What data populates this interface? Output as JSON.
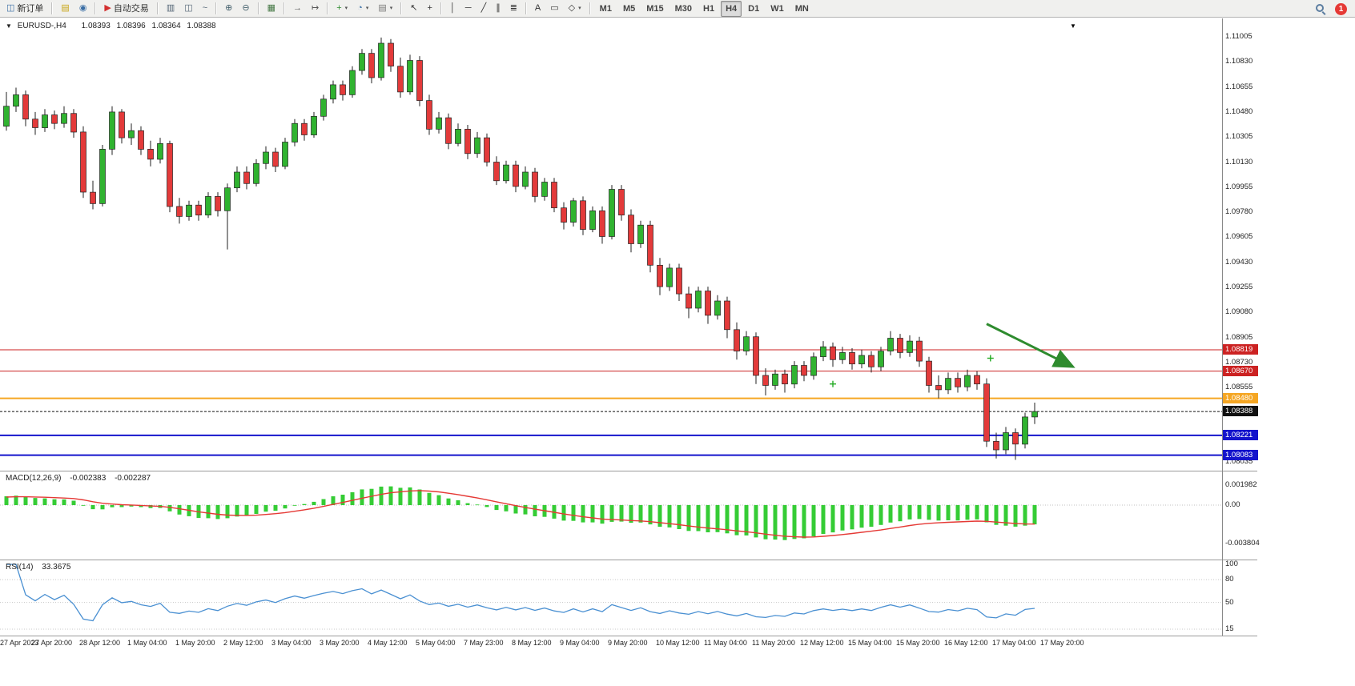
{
  "toolbar": {
    "notification_count": "1",
    "items": [
      {
        "name": "new-order",
        "label": "新订单",
        "glyph": "◫",
        "color": "#3a6ea5"
      },
      {
        "sep": true
      },
      {
        "name": "market-watch",
        "glyph": "▤",
        "color": "#c8a415"
      },
      {
        "name": "navigator",
        "glyph": "◉",
        "color": "#3a6ea5"
      },
      {
        "sep": true
      },
      {
        "name": "auto-trading",
        "label": "自动交易",
        "glyph": "▶",
        "color": "#d32f2f"
      },
      {
        "sep": true
      },
      {
        "name": "bar-chart-mode",
        "glyph": "▥",
        "color": "#556677"
      },
      {
        "name": "candle-chart-mode",
        "glyph": "◫",
        "color": "#556677"
      },
      {
        "name": "line-chart-mode",
        "glyph": "~",
        "color": "#556677"
      },
      {
        "sep": true
      },
      {
        "name": "zoom-in",
        "glyph": "⊕",
        "color": "#44606c"
      },
      {
        "name": "zoom-out",
        "glyph": "⊖",
        "color": "#44606c"
      },
      {
        "sep": true
      },
      {
        "name": "tile-windows",
        "glyph": "▦",
        "color": "#447744"
      },
      {
        "sep": true
      },
      {
        "name": "auto-scroll",
        "glyph": "→",
        "color": "#555555"
      },
      {
        "name": "chart-shift",
        "glyph": "↦",
        "color": "#555555"
      },
      {
        "sep": true
      },
      {
        "name": "indicators",
        "glyph": "+",
        "color": "#2e8b2e",
        "caret": true
      },
      {
        "name": "periods",
        "glyph": "◔",
        "color": "#3a6ea5",
        "caret": true
      },
      {
        "name": "templates",
        "glyph": "▤",
        "color": "#777777",
        "caret": true
      },
      {
        "sep": true
      },
      {
        "name": "cursor",
        "glyph": "↖",
        "color": "#333333"
      },
      {
        "name": "crosshair",
        "glyph": "+",
        "color": "#333333"
      },
      {
        "sep": true
      },
      {
        "name": "vertical-line",
        "glyph": "│",
        "color": "#333333"
      },
      {
        "name": "horizontal-line",
        "glyph": "─",
        "color": "#333333"
      },
      {
        "name": "trendline",
        "glyph": "╱",
        "color": "#333333"
      },
      {
        "name": "equidistant-channel",
        "glyph": "∥",
        "color": "#333333"
      },
      {
        "name": "fibonacci",
        "glyph": "≣",
        "color": "#333333"
      },
      {
        "sep": true
      },
      {
        "name": "text",
        "glyph": "A",
        "color": "#333333"
      },
      {
        "name": "text-label",
        "glyph": "▭",
        "color": "#333333"
      },
      {
        "name": "shapes",
        "glyph": "◇",
        "color": "#333333",
        "caret": true
      },
      {
        "sep": true
      },
      {
        "name": "timeframe-m1",
        "label": "M1",
        "tf": true
      },
      {
        "name": "timeframe-m5",
        "label": "M5",
        "tf": true
      },
      {
        "name": "timeframe-m15",
        "label": "M15",
        "tf": true
      },
      {
        "name": "timeframe-m30",
        "label": "M30",
        "tf": true
      },
      {
        "name": "timeframe-h1",
        "label": "H1",
        "tf": true
      },
      {
        "name": "timeframe-h4",
        "label": "H4",
        "tf": true,
        "active": true
      },
      {
        "name": "timeframe-d1",
        "label": "D1",
        "tf": true
      },
      {
        "name": "timeframe-w1",
        "label": "W1",
        "tf": true
      },
      {
        "name": "timeframe-mn",
        "label": "MN",
        "tf": true
      }
    ]
  },
  "chart": {
    "collapse_glyph": "▼",
    "corner_glyph": "▼",
    "symbol_title": "EURUSD-,H4",
    "open": "1.08393",
    "high": "1.08396",
    "low": "1.08364",
    "close": "1.08388"
  },
  "macd": {
    "title": "MACD(12,26,9)",
    "main_value": "-0.002383",
    "signal_value": "-0.002287",
    "scale": [
      "0.001982",
      "0.00",
      "-0.003804"
    ]
  },
  "rsi": {
    "title": "RSI(14)",
    "value": "33.3675",
    "scale": [
      "100",
      "80",
      "50",
      "15"
    ]
  },
  "price_axis": {
    "range_top": 1.11005,
    "range_bottom": 1.08035,
    "labels": [
      "1.11005",
      "1.10830",
      "1.10655",
      "1.10480",
      "1.10305",
      "1.10130",
      "1.09955",
      "1.09780",
      "1.09605",
      "1.09430",
      "1.09255",
      "1.09080",
      "1.08905",
      "1.08730",
      "1.08555",
      "1.08035"
    ]
  },
  "levels": [
    {
      "name": "resistance-line-upper",
      "price": 1.08819,
      "badge": "1.08819",
      "color": "#cc2222",
      "width": 1,
      "dash": ""
    },
    {
      "name": "resistance-line-lower",
      "price": 1.0867,
      "badge": "1.08670",
      "color": "#cc2222",
      "width": 1,
      "dash": ""
    },
    {
      "name": "support-line-orange",
      "price": 1.0848,
      "badge": "1.08480",
      "color": "#f5a623",
      "width": 2,
      "dash": ""
    },
    {
      "name": "current-price-line",
      "price": 1.08388,
      "badge": "1.08388",
      "color": "#111111",
      "width": 1,
      "dash": "3,2"
    },
    {
      "name": "support-line-blue-upper",
      "price": 1.08221,
      "badge": "1.08221",
      "color": "#1414cc",
      "width": 2,
      "dash": ""
    },
    {
      "name": "support-line-blue-lower",
      "price": 1.08083,
      "badge": "1.08083",
      "color": "#1414cc",
      "width": 2,
      "dash": ""
    }
  ],
  "annotations": {
    "arrow": {
      "from_index": 102,
      "from_price": 1.09,
      "to_index": 111,
      "to_price": 1.087,
      "color": "#2e8b2e"
    },
    "markers": [
      {
        "index": 86,
        "price": 1.0858,
        "color": "#22aa22"
      },
      {
        "index": 102.4,
        "price": 1.0876,
        "color": "#22aa22"
      }
    ]
  },
  "time_axis": {
    "labels": [
      "27 Apr 2023",
      "27 Apr 20:00",
      "28 Apr 12:00",
      "1 May 04:00",
      "1 May 20:00",
      "2 May 12:00",
      "3 May 04:00",
      "3 May 20:00",
      "4 May 12:00",
      "5 May 04:00",
      "7 May 23:00",
      "8 May 12:00",
      "9 May 04:00",
      "9 May 20:00",
      "10 May 12:00",
      "11 May 04:00",
      "11 May 20:00",
      "12 May 12:00",
      "15 May 04:00",
      "15 May 20:00",
      "16 May 12:00",
      "17 May 04:00",
      "17 May 20:00"
    ]
  },
  "colors": {
    "bull": "#30b330",
    "bear": "#e33a3a",
    "wick": "#222222",
    "macd_bar": "#35cc35",
    "macd_signal": "#e53935",
    "rsi_line": "#4a90d2",
    "arrow": "#2e8b2e"
  },
  "chart_data": {
    "type": "candlestick",
    "symbol": "EURUSD",
    "timeframe": "H4",
    "current_ohlc": {
      "open": 1.08393,
      "high": 1.08396,
      "low": 1.08364,
      "close": 1.08388
    },
    "macd_readout": {
      "main": -0.002383,
      "signal": -0.002287
    },
    "rsi_readout": 33.3675,
    "candles": [
      [
        1.1038,
        1.1062,
        1.1035,
        1.1052
      ],
      [
        1.1052,
        1.1065,
        1.1048,
        1.106
      ],
      [
        1.106,
        1.1063,
        1.1038,
        1.1043
      ],
      [
        1.1043,
        1.1048,
        1.1032,
        1.1037
      ],
      [
        1.1037,
        1.105,
        1.1034,
        1.1046
      ],
      [
        1.1046,
        1.1049,
        1.1036,
        1.104
      ],
      [
        1.104,
        1.1052,
        1.1037,
        1.1047
      ],
      [
        1.1047,
        1.105,
        1.103,
        1.1034
      ],
      [
        1.1034,
        1.1038,
        1.0988,
        1.0992
      ],
      [
        1.0992,
        1.1,
        1.098,
        1.0984
      ],
      [
        1.0984,
        1.1025,
        1.0982,
        1.1022
      ],
      [
        1.1022,
        1.1052,
        1.1018,
        1.1048
      ],
      [
        1.1048,
        1.105,
        1.1026,
        1.103
      ],
      [
        1.103,
        1.104,
        1.1025,
        1.1035
      ],
      [
        1.1035,
        1.1038,
        1.1018,
        1.1022
      ],
      [
        1.1022,
        1.1028,
        1.101,
        1.1015
      ],
      [
        1.1015,
        1.103,
        1.1012,
        1.1026
      ],
      [
        1.1026,
        1.1028,
        1.0978,
        1.0982
      ],
      [
        1.0982,
        1.0988,
        1.097,
        1.0975
      ],
      [
        1.0975,
        1.0986,
        1.0972,
        1.0983
      ],
      [
        1.0983,
        1.0986,
        1.0972,
        1.0976
      ],
      [
        1.0976,
        1.0992,
        1.0974,
        1.0989
      ],
      [
        1.0989,
        1.0992,
        1.0975,
        1.0979
      ],
      [
        1.0979,
        1.0998,
        1.0952,
        1.0995
      ],
      [
        1.0995,
        1.101,
        1.0992,
        1.1006
      ],
      [
        1.1006,
        1.101,
        1.0994,
        1.0998
      ],
      [
        1.0998,
        1.1015,
        1.0996,
        1.1012
      ],
      [
        1.1012,
        1.1024,
        1.1008,
        1.102
      ],
      [
        1.102,
        1.1023,
        1.1006,
        1.101
      ],
      [
        1.101,
        1.103,
        1.1008,
        1.1027
      ],
      [
        1.1027,
        1.1043,
        1.1024,
        1.104
      ],
      [
        1.104,
        1.1043,
        1.1028,
        1.1032
      ],
      [
        1.1032,
        1.1048,
        1.103,
        1.1045
      ],
      [
        1.1045,
        1.106,
        1.1042,
        1.1057
      ],
      [
        1.1057,
        1.107,
        1.1054,
        1.1067
      ],
      [
        1.1067,
        1.107,
        1.1056,
        1.106
      ],
      [
        1.106,
        1.108,
        1.1058,
        1.1077
      ],
      [
        1.1077,
        1.1092,
        1.1074,
        1.1089
      ],
      [
        1.1089,
        1.1092,
        1.1068,
        1.1072
      ],
      [
        1.1072,
        1.11,
        1.107,
        1.1096
      ],
      [
        1.1096,
        1.1099,
        1.1076,
        1.108
      ],
      [
        1.108,
        1.1086,
        1.1058,
        1.1062
      ],
      [
        1.1062,
        1.1088,
        1.106,
        1.1084
      ],
      [
        1.1084,
        1.1087,
        1.1052,
        1.1056
      ],
      [
        1.1056,
        1.106,
        1.1032,
        1.1036
      ],
      [
        1.1036,
        1.1048,
        1.1033,
        1.1044
      ],
      [
        1.1044,
        1.1047,
        1.1022,
        1.1026
      ],
      [
        1.1026,
        1.104,
        1.1024,
        1.1036
      ],
      [
        1.1036,
        1.1039,
        1.1015,
        1.1019
      ],
      [
        1.1019,
        1.1034,
        1.1016,
        1.103
      ],
      [
        1.103,
        1.1033,
        1.101,
        1.1013
      ],
      [
        1.1013,
        1.1017,
        1.0997,
        1.1
      ],
      [
        1.1,
        1.1014,
        1.0998,
        1.1011
      ],
      [
        1.1011,
        1.1014,
        1.0992,
        1.0996
      ],
      [
        1.0996,
        1.101,
        1.0994,
        1.1006
      ],
      [
        1.1006,
        1.1009,
        1.0985,
        1.0989
      ],
      [
        1.0989,
        1.1002,
        1.0986,
        1.0999
      ],
      [
        1.0999,
        1.1002,
        1.0978,
        1.0981
      ],
      [
        1.0981,
        1.0985,
        1.0966,
        1.0971
      ],
      [
        1.0971,
        1.0988,
        1.0968,
        1.0986
      ],
      [
        1.0986,
        1.0989,
        1.0962,
        1.0966
      ],
      [
        1.0966,
        1.0982,
        1.0964,
        1.0979
      ],
      [
        1.0979,
        1.0982,
        1.0956,
        1.0961
      ],
      [
        1.0961,
        1.0997,
        1.0959,
        1.0994
      ],
      [
        1.0994,
        1.0997,
        1.0972,
        1.0976
      ],
      [
        1.0976,
        1.098,
        1.095,
        1.0956
      ],
      [
        1.0956,
        1.0972,
        1.0953,
        1.0969
      ],
      [
        1.0969,
        1.0972,
        1.0936,
        1.0941
      ],
      [
        1.0941,
        1.0946,
        1.092,
        1.0926
      ],
      [
        1.0926,
        1.0942,
        1.0923,
        1.0939
      ],
      [
        1.0939,
        1.0942,
        1.0916,
        1.0921
      ],
      [
        1.0921,
        1.0926,
        1.0904,
        1.0911
      ],
      [
        1.0911,
        1.0926,
        1.0908,
        1.0923
      ],
      [
        1.0923,
        1.0926,
        1.09,
        1.0906
      ],
      [
        1.0906,
        1.092,
        1.0903,
        1.0916
      ],
      [
        1.0916,
        1.0919,
        1.089,
        1.0896
      ],
      [
        1.0896,
        1.0901,
        1.0875,
        1.0881
      ],
      [
        1.0881,
        1.0895,
        1.0878,
        1.0891
      ],
      [
        1.0891,
        1.0894,
        1.0858,
        1.0864
      ],
      [
        1.0864,
        1.0869,
        1.085,
        1.0857
      ],
      [
        1.0857,
        1.0868,
        1.0854,
        1.0865
      ],
      [
        1.0865,
        1.0868,
        1.0852,
        1.0858
      ],
      [
        1.0858,
        1.0874,
        1.0855,
        1.0871
      ],
      [
        1.0871,
        1.0874,
        1.086,
        1.0864
      ],
      [
        1.0864,
        1.088,
        1.0861,
        1.0877
      ],
      [
        1.0877,
        1.0888,
        1.0874,
        1.0884
      ],
      [
        1.0884,
        1.0887,
        1.087,
        1.0875
      ],
      [
        1.0875,
        1.0884,
        1.0872,
        1.088
      ],
      [
        1.088,
        1.0883,
        1.0868,
        1.0872
      ],
      [
        1.0872,
        1.0882,
        1.0869,
        1.0878
      ],
      [
        1.0878,
        1.0881,
        1.0866,
        1.087
      ],
      [
        1.087,
        1.0884,
        1.0867,
        1.0881
      ],
      [
        1.0881,
        1.0895,
        1.0878,
        1.089
      ],
      [
        1.089,
        1.0893,
        1.0876,
        1.088
      ],
      [
        1.088,
        1.0892,
        1.0877,
        1.0888
      ],
      [
        1.0888,
        1.0891,
        1.087,
        1.0874
      ],
      [
        1.0874,
        1.0877,
        1.0852,
        1.0857
      ],
      [
        1.0857,
        1.0864,
        1.0848,
        1.0854
      ],
      [
        1.0854,
        1.0866,
        1.0851,
        1.0862
      ],
      [
        1.0862,
        1.0866,
        1.0852,
        1.0856
      ],
      [
        1.0856,
        1.0868,
        1.0853,
        1.0864
      ],
      [
        1.0864,
        1.0867,
        1.0854,
        1.0858
      ],
      [
        1.0858,
        1.0862,
        1.0814,
        1.0818
      ],
      [
        1.0818,
        1.0824,
        1.0806,
        1.0812
      ],
      [
        1.0812,
        1.0828,
        1.0809,
        1.0824
      ],
      [
        1.0824,
        1.0827,
        1.0805,
        1.0816
      ],
      [
        1.0816,
        1.0838,
        1.0813,
        1.0835
      ],
      [
        1.0835,
        1.0845,
        1.083,
        1.08388
      ]
    ]
  }
}
